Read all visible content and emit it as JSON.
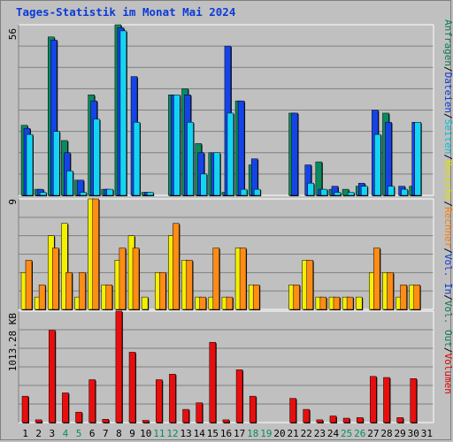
{
  "title": "Tages-Statistik im Monat Mai 2024",
  "right_legend": [
    {
      "text": "Anfragen",
      "color": "#0b7a5a"
    },
    {
      "text": "/",
      "color": "#000000"
    },
    {
      "text": "Dateien",
      "color": "#0b3ad8"
    },
    {
      "text": "/",
      "color": "#000000"
    },
    {
      "text": "Seiten",
      "color": "#00c0e0"
    },
    {
      "text": "/",
      "color": "#000000"
    },
    {
      "text": "Besuche",
      "color": "#e0e000"
    },
    {
      "text": "/",
      "color": "#000000"
    },
    {
      "text": "Rechner",
      "color": "#ff7a00"
    },
    {
      "text": "/",
      "color": "#000000"
    },
    {
      "text": "Vol. In",
      "color": "#0b3ad8"
    },
    {
      "text": "/",
      "color": "#000000"
    },
    {
      "text": "Vol. Out",
      "color": "#0b7a5a"
    },
    {
      "text": "/",
      "color": "#000000"
    },
    {
      "text": "Volumen",
      "color": "#e00000"
    }
  ],
  "colors": {
    "anfragen": "#0a8a5e",
    "dateien": "#1444e8",
    "seiten": "#14d4f4",
    "besuche": "#f4f000",
    "rechner": "#ff8c14",
    "volumen": "#e80e0e",
    "weekend_label": "#0a8a5e",
    "weekday_label": "#000000"
  },
  "chart_data": [
    {
      "type": "bar",
      "panel": "top",
      "ymax_label": "56",
      "ylim": [
        0,
        56
      ],
      "series": [
        {
          "name": "Anfragen",
          "values": [
            23,
            2,
            52,
            18,
            5,
            33,
            2,
            56,
            0,
            1,
            0,
            33,
            35,
            17,
            14,
            1,
            31,
            10,
            0,
            0,
            27,
            0,
            11,
            2,
            2,
            3,
            0,
            27,
            0,
            3,
            0
          ]
        },
        {
          "name": "Dateien",
          "values": [
            22,
            2,
            51,
            14,
            5,
            31,
            2,
            55,
            39,
            1,
            0,
            33,
            33,
            14,
            14,
            49,
            31,
            12,
            0,
            0,
            27,
            10,
            2,
            3,
            0,
            4,
            28,
            24,
            3,
            24,
            0
          ]
        },
        {
          "name": "Seiten",
          "values": [
            20,
            1,
            21,
            8,
            1,
            25,
            2,
            54,
            24,
            1,
            0,
            33,
            24,
            7,
            14,
            27,
            2,
            2,
            0,
            0,
            0,
            4,
            2,
            1,
            1,
            3,
            20,
            3,
            2,
            24,
            0
          ]
        }
      ]
    },
    {
      "type": "bar",
      "panel": "middle",
      "ymax_label": "9",
      "ylim": [
        0,
        9
      ],
      "series": [
        {
          "name": "Besuche",
          "values": [
            3,
            1,
            6,
            7,
            1,
            9,
            2,
            4,
            6,
            1,
            3,
            6,
            4,
            1,
            1,
            1,
            5,
            2,
            0,
            0,
            2,
            4,
            1,
            1,
            1,
            1,
            3,
            3,
            1,
            2,
            0
          ]
        },
        {
          "name": "Rechner",
          "values": [
            4,
            2,
            5,
            3,
            3,
            9,
            2,
            5,
            5,
            0,
            3,
            7,
            4,
            1,
            5,
            1,
            5,
            2,
            0,
            0,
            2,
            4,
            1,
            1,
            1,
            0,
            5,
            3,
            2,
            2,
            0
          ]
        }
      ]
    },
    {
      "type": "bar",
      "panel": "bottom",
      "ymax_label": "1013.28 KB",
      "ylim": [
        0,
        1013.28
      ],
      "series": [
        {
          "name": "Volumen",
          "values": [
            240,
            25,
            840,
            270,
            95,
            390,
            30,
            1013.28,
            640,
            20,
            390,
            440,
            120,
            180,
            730,
            25,
            480,
            240,
            0,
            0,
            220,
            120,
            25,
            60,
            40,
            45,
            420,
            410,
            45,
            400,
            0
          ]
        }
      ]
    }
  ],
  "x_axis": {
    "days": [
      "1",
      "2",
      "3",
      "4",
      "5",
      "6",
      "7",
      "8",
      "9",
      "10",
      "11",
      "12",
      "13",
      "14",
      "15",
      "16",
      "17",
      "18",
      "19",
      "20",
      "21",
      "22",
      "23",
      "24",
      "25",
      "26",
      "27",
      "28",
      "29",
      "30",
      "31"
    ],
    "weekend": [
      false,
      false,
      false,
      true,
      true,
      false,
      false,
      false,
      false,
      false,
      true,
      true,
      false,
      false,
      false,
      false,
      false,
      true,
      true,
      false,
      false,
      false,
      false,
      false,
      true,
      true,
      false,
      false,
      false,
      false,
      false
    ]
  }
}
